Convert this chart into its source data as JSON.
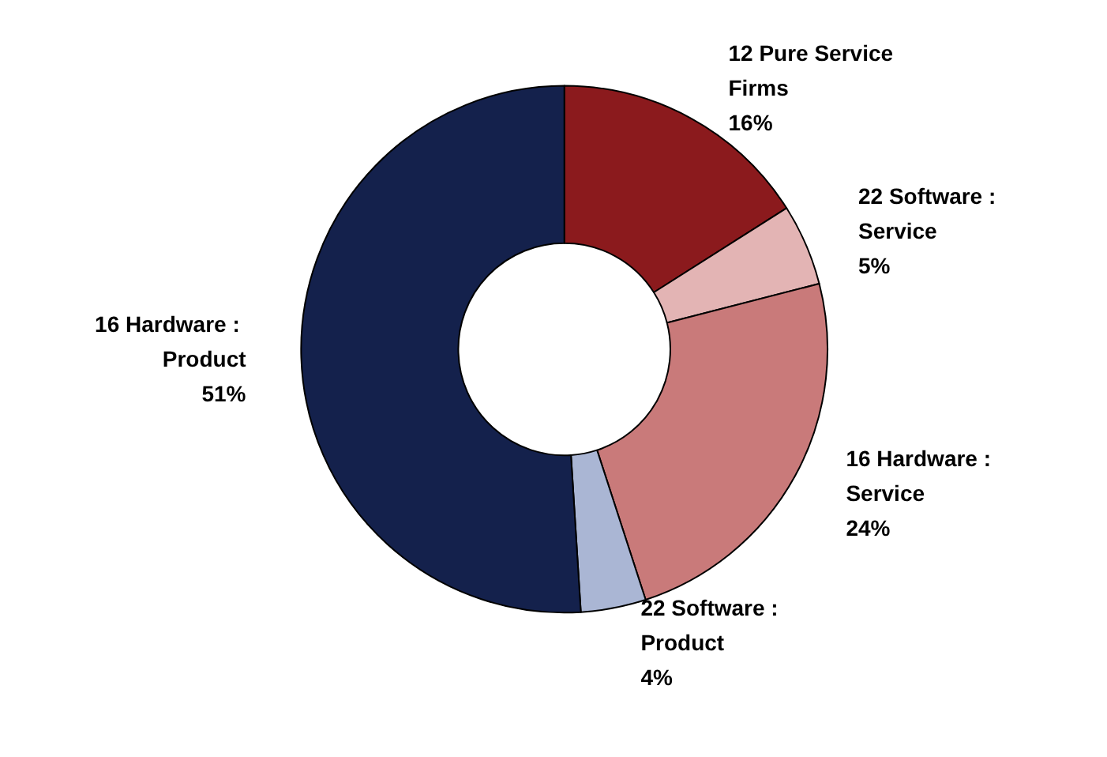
{
  "chart_data": {
    "type": "donut",
    "categories": [
      "12 Pure Service Firms",
      "22 Software : Service",
      "16 Hardware : Service",
      "22 Software : Product",
      "16 Hardware : Product"
    ],
    "values": [
      16,
      5,
      24,
      4,
      51
    ],
    "value_labels": [
      "16%",
      "5%",
      "24%",
      "4%",
      "51%"
    ],
    "colors": [
      "#8b1a1d",
      "#e3b4b4",
      "#c97a7a",
      "#aab6d4",
      "#14214c"
    ],
    "legend": false
  }
}
